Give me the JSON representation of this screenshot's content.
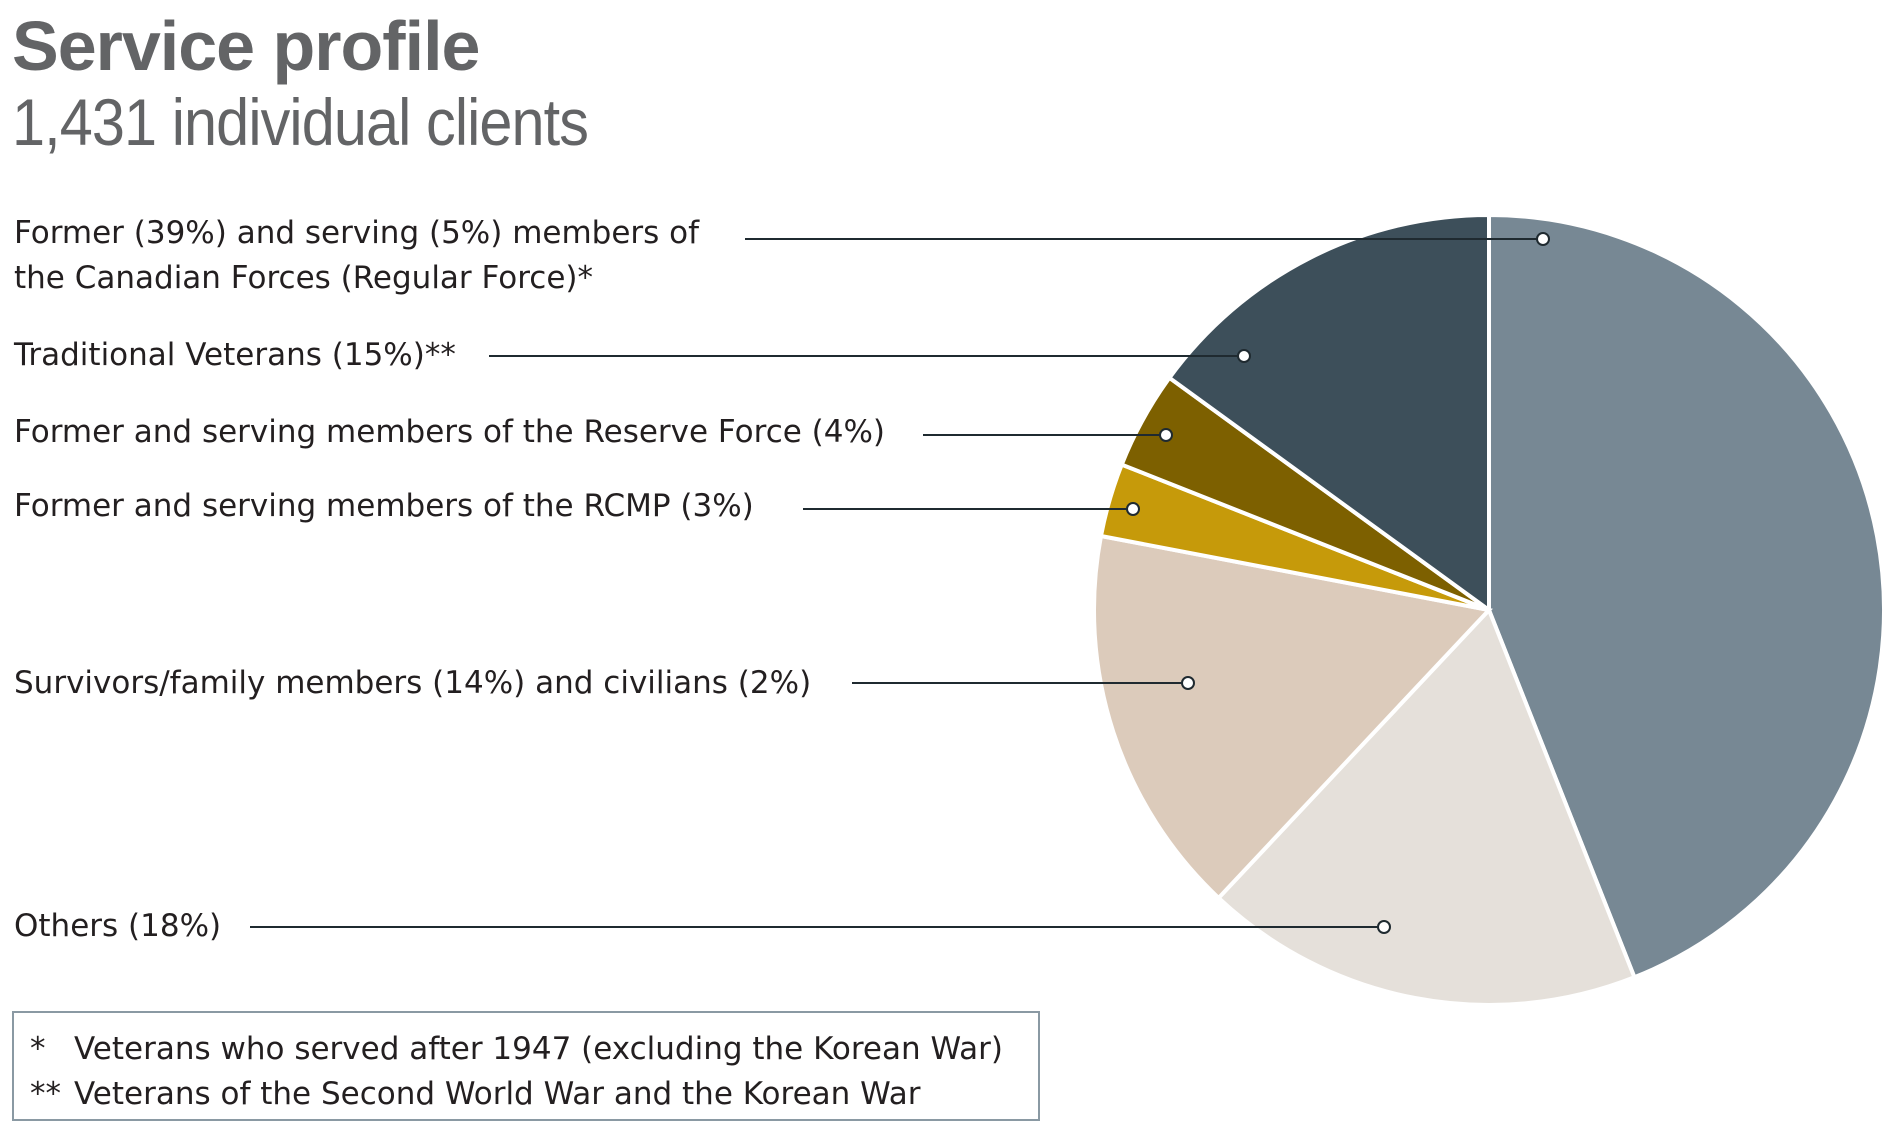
{
  "chart_data": {
    "type": "pie",
    "title": "Service profile",
    "subtitle": "1,431 individual clients",
    "slices": [
      {
        "label_lines": [
          "Former (39%) and serving (5%) members of",
          "the Canadian Forces (Regular Force)*"
        ],
        "value": 44,
        "color": "#778894"
      },
      {
        "label_lines": [
          "Others (18%)"
        ],
        "value": 18,
        "color": "#e5e0da"
      },
      {
        "label_lines": [
          "Survivors/family members (14%) and civilians (2%)"
        ],
        "value": 16,
        "color": "#dccbbb"
      },
      {
        "label_lines": [
          "Former and serving members of the RCMP (3%)"
        ],
        "value": 3,
        "color": "#c69a0a"
      },
      {
        "label_lines": [
          "Former and serving members of the Reserve Force (4%)"
        ],
        "value": 4,
        "color": "#7d6000"
      },
      {
        "label_lines": [
          "Traditional Veterans (15%)**"
        ],
        "value": 15,
        "color": "#3d4f5a"
      }
    ]
  },
  "footnotes": [
    {
      "mark": "*",
      "text": "Veterans who served after 1947 (excluding the Korean War)"
    },
    {
      "mark": "**",
      "text": "Veterans of the Second World War and the Korean War"
    }
  ]
}
